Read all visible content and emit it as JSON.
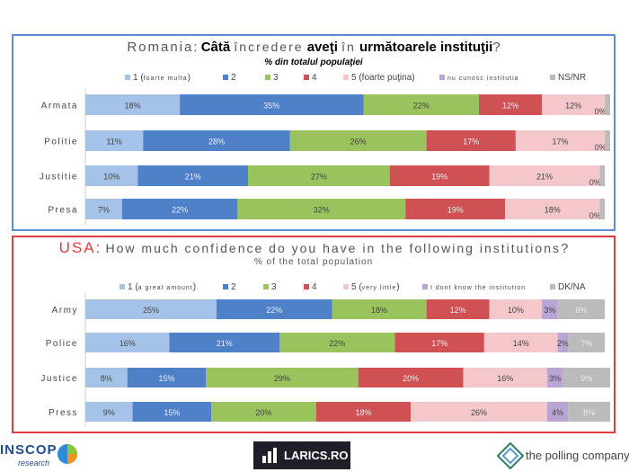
{
  "colors": [
    "#a5c3e8",
    "#4f81c9",
    "#9ac25d",
    "#d05153",
    "#f4c7cb",
    "#b9a4d6",
    "#bbbbbb"
  ],
  "panel_ro": {
    "country": "Romania",
    "title_p1": "Câtă",
    "title_p2": "încredere",
    "title_p3": "aveţi",
    "title_p4": "în",
    "title_p5": "următoarele instituţii",
    "title_end": "?",
    "subtitle": "% din totalul populaţiei",
    "legend": {
      "l1_main": "1 (",
      "l1_small": "foarte multa",
      "l1_end": ")",
      "l2": "2",
      "l3": "3",
      "l4": "4",
      "l5": "5 (foarte puţina)",
      "l6": "nu cunosc institutia",
      "l7": "NS/NR"
    }
  },
  "panel_us": {
    "country": "USA:",
    "title_p1": "How much confidence do you have in the following institutions",
    "title_end": "?",
    "subtitle": "% of the total population",
    "legend": {
      "l1_main": "1 (",
      "l1_small": "a great amount",
      "l1_end": ")",
      "l2": "2",
      "l3": "3",
      "l4": "4",
      "l5_main": "5 (",
      "l5_small": "very little",
      "l5_end": ")",
      "l6": "I dont know the institution",
      "l7": "DK/NA"
    }
  },
  "chart_data": [
    {
      "type": "bar",
      "orientation": "horizontal",
      "stacked": true,
      "categories": [
        "Armata",
        "Politie",
        "Justitie",
        "Presa"
      ],
      "series": [
        {
          "name": "1 (foarte multa)",
          "values": [
            18,
            11,
            10,
            7
          ],
          "labels": [
            "18%",
            "11%",
            "10%",
            "7%"
          ]
        },
        {
          "name": "2",
          "values": [
            35,
            28,
            21,
            22
          ],
          "labels": [
            "35%",
            "28%",
            "21%",
            "22%"
          ]
        },
        {
          "name": "3",
          "values": [
            22,
            26,
            27,
            32
          ],
          "labels": [
            "22%",
            "26%",
            "27%",
            "32%"
          ]
        },
        {
          "name": "4",
          "values": [
            12,
            17,
            19,
            19
          ],
          "labels": [
            "12%",
            "17%",
            "19%",
            "19%"
          ]
        },
        {
          "name": "5 (foarte puţina)",
          "values": [
            12,
            17,
            21,
            18
          ],
          "labels": [
            "12%",
            "17%",
            "21%",
            "18%"
          ]
        },
        {
          "name": "nu cunosc institutia",
          "values": [
            0,
            0,
            0,
            0
          ],
          "labels": [
            "0%",
            "0%",
            "0%",
            "0%"
          ]
        },
        {
          "name": "NS/NR",
          "values": [
            1,
            1,
            1,
            1
          ],
          "labels": [
            "",
            "",
            "",
            ""
          ]
        }
      ],
      "legend": "top"
    },
    {
      "type": "bar",
      "orientation": "horizontal",
      "stacked": true,
      "categories": [
        "Army",
        "Police",
        "Justice",
        "Press"
      ],
      "series": [
        {
          "name": "1 (a great amount)",
          "values": [
            25,
            16,
            8,
            9
          ],
          "labels": [
            "25%",
            "16%",
            "8%",
            "9%"
          ]
        },
        {
          "name": "2",
          "values": [
            22,
            21,
            15,
            15
          ],
          "labels": [
            "22%",
            "21%",
            "15%",
            "15%"
          ]
        },
        {
          "name": "3",
          "values": [
            18,
            22,
            29,
            20
          ],
          "labels": [
            "18%",
            "22%",
            "29%",
            "20%"
          ]
        },
        {
          "name": "4",
          "values": [
            12,
            17,
            20,
            18
          ],
          "labels": [
            "12%",
            "17%",
            "20%",
            "18%"
          ]
        },
        {
          "name": "5 (very little)",
          "values": [
            10,
            14,
            16,
            26
          ],
          "labels": [
            "10%",
            "14%",
            "16%",
            "26%"
          ]
        },
        {
          "name": "I dont know the institution",
          "values": [
            3,
            2,
            3,
            4
          ],
          "labels": [
            "3%",
            "2%",
            "3%",
            "4%"
          ]
        },
        {
          "name": "DK/NA",
          "values": [
            9,
            7,
            9,
            8
          ],
          "labels": [
            "9%",
            "7%",
            "9%",
            "8%"
          ]
        }
      ],
      "legend": "top"
    }
  ],
  "footer": {
    "inscop": "INSCOP",
    "inscop_sub": "research",
    "larics": "LARICS.RO",
    "polling": "the polling company"
  }
}
